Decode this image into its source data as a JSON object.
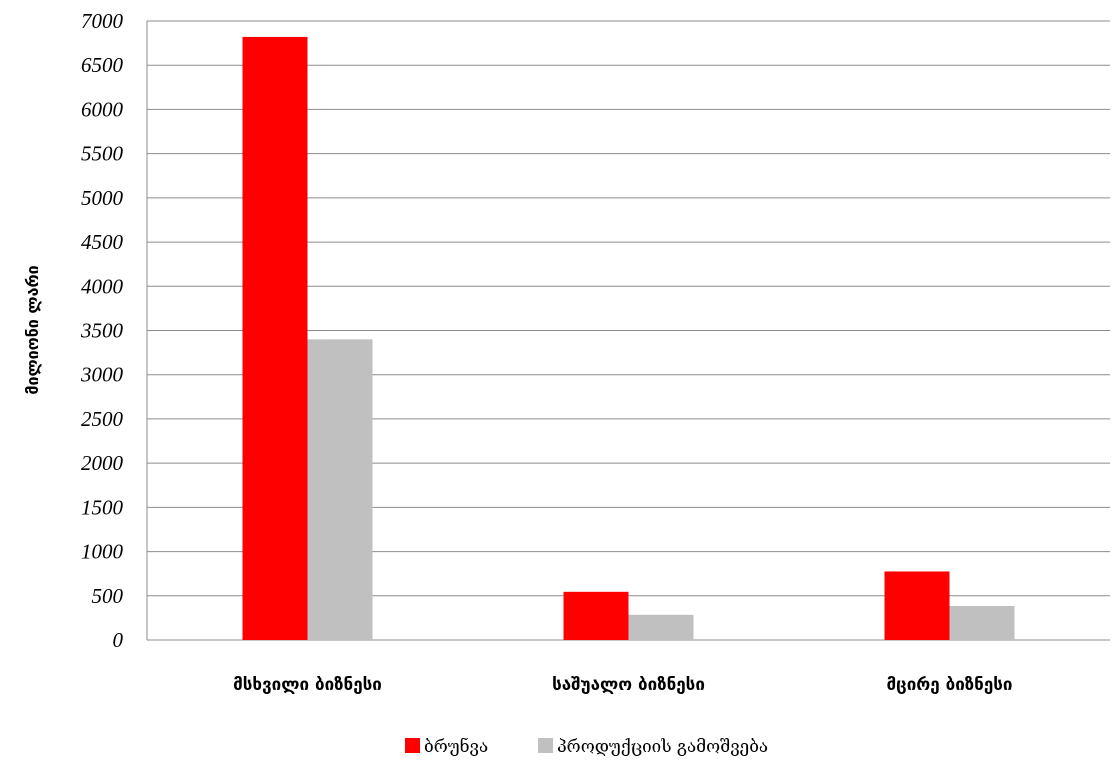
{
  "chart_data": {
    "type": "bar",
    "title": "",
    "xlabel": "",
    "ylabel": "მილიონი ლარი",
    "categories": [
      "მსხვილი ბიზნესი",
      "საშუალო ბიზნესი",
      "მცირე ბიზნესი"
    ],
    "series": [
      {
        "name": "ბრუნვა",
        "color": "#ff0000",
        "values": [
          6820,
          545,
          775
        ]
      },
      {
        "name": "პროდუქციის გამოშვება",
        "color": "#c0c0c0",
        "values": [
          3400,
          285,
          385
        ]
      }
    ],
    "ylim": [
      0,
      7000
    ],
    "yticks": [
      "0",
      "500",
      "1000",
      "1500",
      "2000",
      "2500",
      "3000",
      "3500",
      "4000",
      "4500",
      "5000",
      "5500",
      "6000",
      "6500",
      "7000"
    ],
    "grid": true,
    "legend_position": "bottom"
  }
}
